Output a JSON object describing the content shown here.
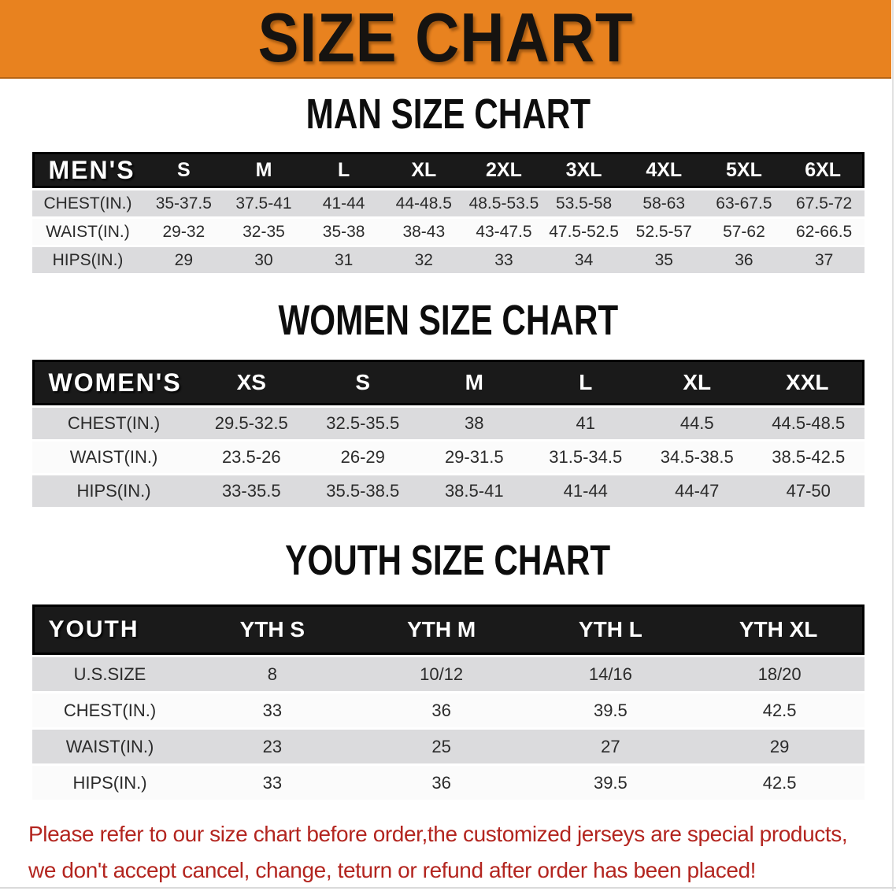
{
  "colors": {
    "banner_bg": "#E8821F",
    "header_bar": "#1A1A1A",
    "row_gray": "#DBDBDD",
    "row_white": "#FBFBFB",
    "note_red": "#B3251F"
  },
  "banner": {
    "title": "SIZE CHART"
  },
  "sections": [
    {
      "heading": "MAN SIZE CHART",
      "table": {
        "header_label": "MEN'S",
        "columns": [
          "S",
          "M",
          "L",
          "XL",
          "2XL",
          "3XL",
          "4XL",
          "5XL",
          "6XL"
        ],
        "rows": [
          {
            "label": "CHEST(IN.)",
            "values": [
              "35-37.5",
              "37.5-41",
              "41-44",
              "44-48.5",
              "48.5-53.5",
              "53.5-58",
              "58-63",
              "63-67.5",
              "67.5-72"
            ]
          },
          {
            "label": "WAIST(IN.)",
            "values": [
              "29-32",
              "32-35",
              "35-38",
              "38-43",
              "43-47.5",
              "47.5-52.5",
              "52.5-57",
              "57-62",
              "62-66.5"
            ]
          },
          {
            "label": "HIPS(IN.)",
            "values": [
              "29",
              "30",
              "31",
              "32",
              "33",
              "34",
              "35",
              "36",
              "37"
            ]
          }
        ]
      }
    },
    {
      "heading": "WOMEN SIZE CHART",
      "table": {
        "header_label": "WOMEN'S",
        "columns": [
          "XS",
          "S",
          "M",
          "L",
          "XL",
          "XXL"
        ],
        "rows": [
          {
            "label": "CHEST(IN.)",
            "values": [
              "29.5-32.5",
              "32.5-35.5",
              "38",
              "41",
              "44.5",
              "44.5-48.5"
            ]
          },
          {
            "label": "WAIST(IN.)",
            "values": [
              "23.5-26",
              "26-29",
              "29-31.5",
              "31.5-34.5",
              "34.5-38.5",
              "38.5-42.5"
            ]
          },
          {
            "label": "HIPS(IN.)",
            "values": [
              "33-35.5",
              "35.5-38.5",
              "38.5-41",
              "41-44",
              "44-47",
              "47-50"
            ]
          }
        ]
      }
    },
    {
      "heading": "YOUTH SIZE CHART",
      "table": {
        "header_label": "YOUTH",
        "columns": [
          "YTH S",
          "YTH M",
          "YTH L",
          "YTH XL"
        ],
        "rows": [
          {
            "label": "U.S.SIZE",
            "values": [
              "8",
              "10/12",
              "14/16",
              "18/20"
            ]
          },
          {
            "label": "CHEST(IN.)",
            "values": [
              "33",
              "36",
              "39.5",
              "42.5"
            ]
          },
          {
            "label": "WAIST(IN.)",
            "values": [
              "23",
              "25",
              "27",
              "29"
            ]
          },
          {
            "label": "HIPS(IN.)",
            "values": [
              "33",
              "36",
              "39.5",
              "42.5"
            ]
          }
        ]
      }
    }
  ],
  "footer_note": {
    "line1": "Please refer to our size chart before order,the customized jerseys are special products,",
    "line2": "we don't accept cancel, change, teturn or refund after order has been placed!"
  }
}
